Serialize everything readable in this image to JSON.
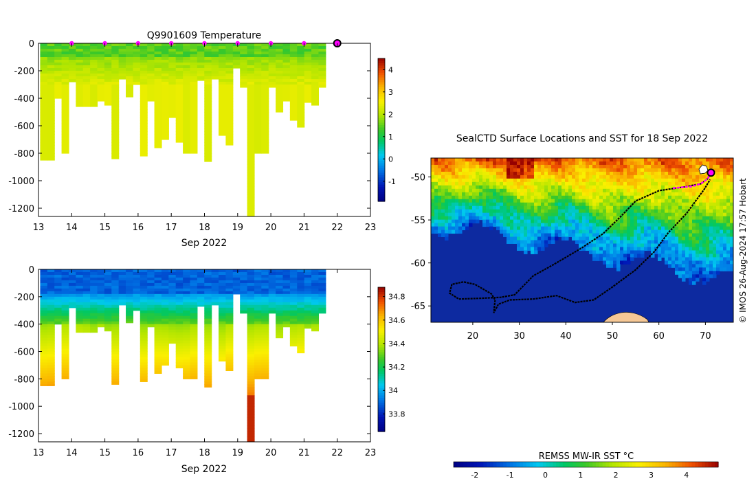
{
  "chart_data": [
    {
      "id": "temp-section",
      "type": "heatmap",
      "title": "Q9901609  Temperature",
      "xlabel": "Sep 2022",
      "x_ticks": [
        "13",
        "14",
        "15",
        "16",
        "17",
        "18",
        "19",
        "20",
        "21",
        "22",
        "23"
      ],
      "x_range": [
        13,
        23
      ],
      "y_ticks": [
        "0",
        "-200",
        "-400",
        "-600",
        "-800",
        "-1000",
        "-1200"
      ],
      "y_tick_values": [
        0,
        -200,
        -400,
        -600,
        -800,
        -1000,
        -1200
      ],
      "y_range": [
        0,
        -1260
      ],
      "colorbar_ticks": [
        "-1",
        "0",
        "1",
        "2",
        "3",
        "4"
      ],
      "colorbar_tick_values": [
        -1,
        0,
        1,
        2,
        3,
        4
      ],
      "colorbar_range": [
        -1.9,
        4.5
      ],
      "daily_markers": [
        14,
        15,
        16,
        17,
        18,
        19,
        20,
        21
      ],
      "current_marker": 22,
      "profile_start": 13.05,
      "profile_end": 21.65,
      "profile_max_depths": [
        850,
        850,
        400,
        800,
        280,
        460,
        460,
        460,
        420,
        450,
        840,
        260,
        390,
        300,
        820,
        420,
        760,
        700,
        540,
        720,
        800,
        800,
        270,
        860,
        260,
        670,
        740,
        180,
        320,
        1260,
        800,
        800,
        320,
        500,
        420,
        560,
        610,
        430,
        450,
        320
      ]
    },
    {
      "id": "salinity-section",
      "type": "heatmap",
      "xlabel": "Sep 2022",
      "x_ticks": [
        "13",
        "14",
        "15",
        "16",
        "17",
        "18",
        "19",
        "20",
        "21",
        "22",
        "23"
      ],
      "x_range": [
        13,
        23
      ],
      "y_ticks": [
        "0",
        "-200",
        "-400",
        "-600",
        "-800",
        "-1000",
        "-1200"
      ],
      "y_tick_values": [
        0,
        -200,
        -400,
        -600,
        -800,
        -1000,
        -1200
      ],
      "y_range": [
        0,
        -1260
      ],
      "colorbar_ticks": [
        "33.8",
        "34",
        "34.2",
        "34.4",
        "34.6",
        "34.8"
      ],
      "colorbar_tick_values": [
        33.8,
        34.0,
        34.2,
        34.4,
        34.6,
        34.8
      ],
      "colorbar_range": [
        33.65,
        34.88
      ]
    },
    {
      "id": "sst-map",
      "type": "map",
      "title": "SealCTD Surface Locations and SST for 18 Sep 2022",
      "x_ticks": [
        "20",
        "30",
        "40",
        "50",
        "60",
        "70"
      ],
      "x_tick_values": [
        20,
        30,
        40,
        50,
        60,
        70
      ],
      "lon_range": [
        11,
        76
      ],
      "y_ticks": [
        "-50",
        "-55",
        "-60",
        "-65"
      ],
      "y_tick_values": [
        -50,
        -55,
        -60,
        -65
      ],
      "lat_range": [
        -47.8,
        -66.9
      ],
      "colorbar_title": "REMSS MW-IR SST °C",
      "colorbar_ticks": [
        "-2",
        "-1",
        "0",
        "1",
        "2",
        "3",
        "4"
      ],
      "colorbar_tick_values": [
        -2,
        -1,
        0,
        1,
        2,
        3,
        4
      ],
      "colorbar_range": [
        -2.6,
        4.9
      ],
      "track": [
        [
          71.2,
          -49.5
        ],
        [
          70.5,
          -50.2
        ],
        [
          69,
          -50.8
        ],
        [
          65,
          -51.2
        ],
        [
          60,
          -51.6
        ],
        [
          55,
          -52.8
        ],
        [
          52,
          -54.5
        ],
        [
          48,
          -56.6
        ],
        [
          43,
          -58.4
        ],
        [
          37,
          -60.3
        ],
        [
          33,
          -61.5
        ],
        [
          29,
          -63.7
        ],
        [
          26,
          -64
        ],
        [
          22,
          -64.1
        ],
        [
          17,
          -64.2
        ],
        [
          15,
          -63.5
        ],
        [
          15.5,
          -62.5
        ],
        [
          18,
          -62.2
        ],
        [
          20.5,
          -62.5
        ],
        [
          24,
          -63.6
        ],
        [
          24.8,
          -64.3
        ],
        [
          24.5,
          -65.8
        ],
        [
          25.5,
          -64.8
        ],
        [
          28,
          -64.3
        ],
        [
          33,
          -64.2
        ],
        [
          38,
          -63.8
        ],
        [
          42,
          -64.6
        ],
        [
          46,
          -64.3
        ],
        [
          50,
          -62.8
        ],
        [
          55,
          -60.8
        ],
        [
          59,
          -58.7
        ],
        [
          62,
          -56.5
        ],
        [
          66,
          -54.2
        ],
        [
          69.8,
          -51.4
        ],
        [
          71,
          -50.3
        ]
      ],
      "recent_track": [
        [
          71.2,
          -49.5
        ],
        [
          70.5,
          -50.2
        ],
        [
          69,
          -50.8
        ],
        [
          67,
          -51.1
        ],
        [
          65,
          -51.2
        ],
        [
          63,
          -51.3
        ]
      ],
      "current_position": [
        71.2,
        -49.5
      ]
    }
  ],
  "credit_text": "© IMOS 26-Aug-2024 17:57 Hobart"
}
